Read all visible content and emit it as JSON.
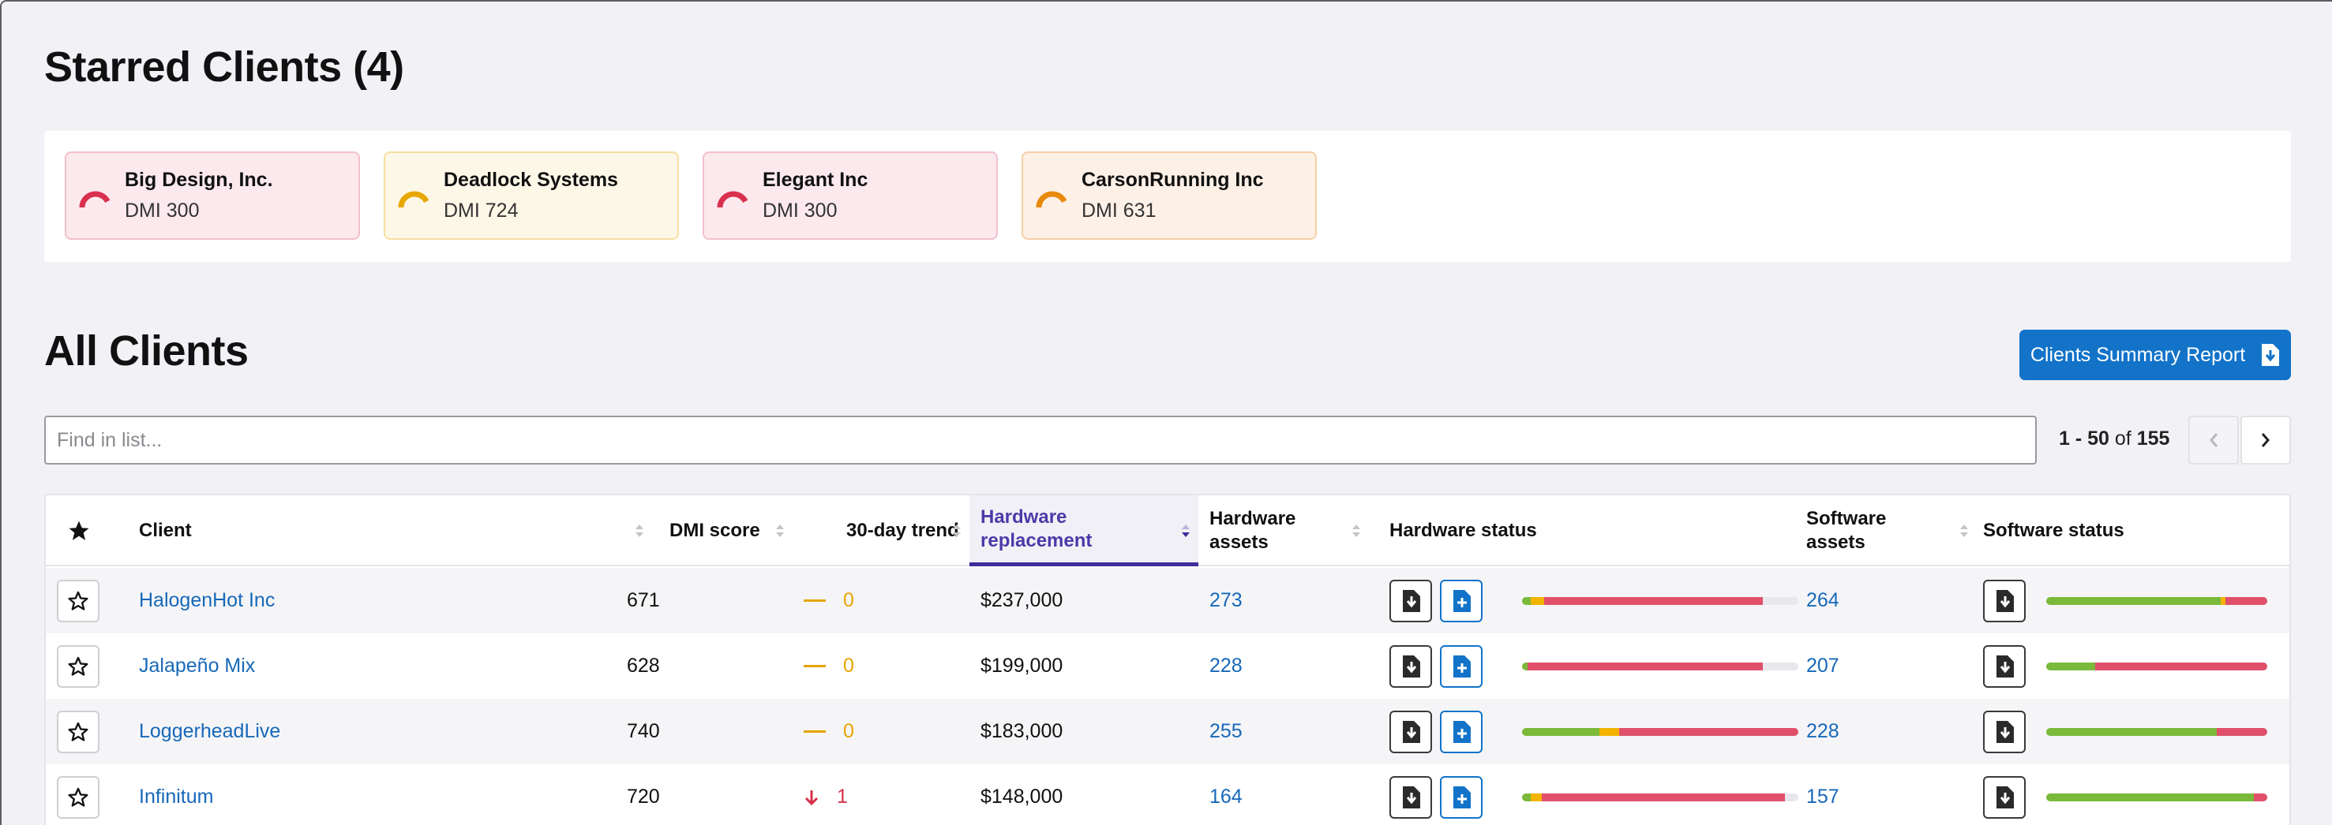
{
  "starred": {
    "title": "Starred Clients (4)",
    "cards": [
      {
        "name": "Big Design, Inc.",
        "dmi": "DMI 300",
        "color": "#d9304f",
        "level": 0.3
      },
      {
        "name": "Deadlock Systems",
        "dmi": "DMI 724",
        "color": "#e8a800",
        "level": 0.72
      },
      {
        "name": "Elegant Inc",
        "dmi": "DMI 300",
        "color": "#d9304f",
        "level": 0.3
      },
      {
        "name": "CarsonRunning Inc",
        "dmi": "DMI 631",
        "color": "#e8890c",
        "level": 0.63
      }
    ]
  },
  "all_clients": {
    "title": "All Clients",
    "report_button": "Clients Summary Report",
    "search_placeholder": "Find in list...",
    "pager": {
      "range": "1 - 50",
      "of": "of",
      "total": "155"
    }
  },
  "table": {
    "headers": {
      "client": "Client",
      "dmi": "DMI score",
      "trend": "30-day trend",
      "hw_replacement": "Hardware replacement",
      "hw_assets": "Hardware assets",
      "hw_status": "Hardware status",
      "sw_assets": "Software assets",
      "sw_status": "Software status"
    },
    "rows": [
      {
        "client": "HalogenHot Inc",
        "dmi": "671",
        "trend": "0",
        "trend_dir": "flat",
        "hw_replacement": "$237,000",
        "hw_assets": "273",
        "sw_assets": "264",
        "hw_status": {
          "green": 0.03,
          "yellow": 0.05,
          "red": 0.79
        },
        "sw_status": {
          "green": 0.79,
          "yellow": 0.02,
          "red": 0.19
        }
      },
      {
        "client": "Jalapeño Mix",
        "dmi": "628",
        "trend": "0",
        "trend_dir": "flat",
        "hw_replacement": "$199,000",
        "hw_assets": "228",
        "sw_assets": "207",
        "hw_status": {
          "green": 0.02,
          "yellow": 0.0,
          "red": 0.85
        },
        "sw_status": {
          "green": 0.22,
          "yellow": 0.0,
          "red": 0.78
        }
      },
      {
        "client": "LoggerheadLive",
        "dmi": "740",
        "trend": "0",
        "trend_dir": "flat",
        "hw_replacement": "$183,000",
        "hw_assets": "255",
        "sw_assets": "228",
        "hw_status": {
          "green": 0.28,
          "yellow": 0.07,
          "red": 0.65
        },
        "sw_status": {
          "green": 0.77,
          "yellow": 0.0,
          "red": 0.23
        }
      },
      {
        "client": "Infinitum",
        "dmi": "720",
        "trend": "1",
        "trend_dir": "down",
        "hw_replacement": "$148,000",
        "hw_assets": "164",
        "sw_assets": "157",
        "hw_status": {
          "green": 0.03,
          "yellow": 0.04,
          "red": 0.88
        },
        "sw_status": {
          "green": 0.94,
          "yellow": 0.0,
          "red": 0.06
        }
      }
    ]
  },
  "colors": {
    "accent": "#1273c9",
    "link": "#1768b8",
    "sort_active": "#4b3aa8",
    "green": "#7bb93a",
    "yellow": "#f2b400",
    "red": "#e0506b"
  }
}
